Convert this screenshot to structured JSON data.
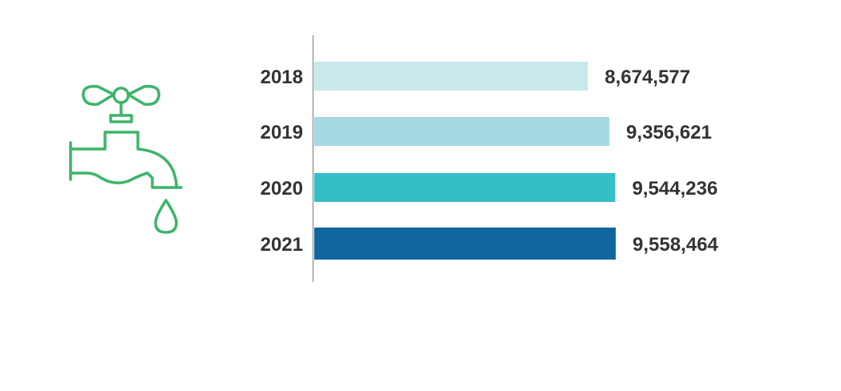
{
  "chart_data": {
    "type": "bar",
    "orientation": "horizontal",
    "categories": [
      "2018",
      "2019",
      "2020",
      "2021"
    ],
    "values": [
      8674577,
      9356621,
      9544236,
      9558464
    ],
    "value_labels": [
      "8,674,577",
      "9,356,621",
      "9,544,236",
      "9,558,464"
    ],
    "colors": [
      "#c9e8ec",
      "#a5d8e2",
      "#35bec8",
      "#10679e"
    ],
    "xlim": [
      0,
      9558464
    ],
    "title": "",
    "xlabel": "",
    "ylabel": "",
    "grid": false
  },
  "icon": {
    "name": "water-faucet-icon",
    "color": "#3cb56a"
  }
}
